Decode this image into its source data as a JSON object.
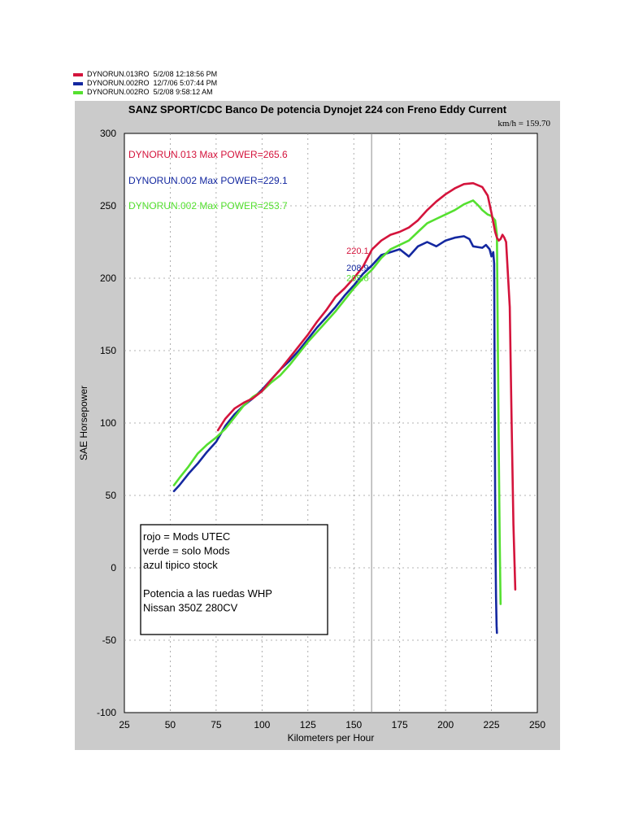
{
  "legend": [
    {
      "name": "DYNORUN.013RO",
      "date": "5/2/08 12:18:56 PM",
      "color": "#d4143c"
    },
    {
      "name": "DYNORUN.002RO",
      "date": "12/7/06 5:07:44 PM",
      "color": "#1428a0"
    },
    {
      "name": "DYNORUN.002RO",
      "date": "5/2/08 9:58:12 AM",
      "color": "#55e030"
    }
  ],
  "readout": "km/h = 159.70",
  "chart_data": {
    "type": "line",
    "title": "SANZ SPORT/CDC  Banco De potencia Dynojet 224 con Freno Eddy Current",
    "xlabel": "Kilometers per Hour",
    "ylabel": "SAE Horsepower",
    "xlim": [
      25,
      250
    ],
    "ylim": [
      -100,
      300
    ],
    "xticks": [
      25,
      50,
      75,
      100,
      125,
      150,
      175,
      200,
      225,
      250
    ],
    "yticks": [
      300,
      250,
      200,
      150,
      100,
      50,
      0,
      -50,
      -100
    ],
    "grid": true,
    "cursor_x": 159.7,
    "annotations": [
      {
        "text": "DYNORUN.013  Max POWER=265.6",
        "color": "#d4143c"
      },
      {
        "text": "DYNORUN.002  Max POWER=229.1",
        "color": "#1428a0"
      },
      {
        "text": "DYNORUN.002  Max POWER=253.7",
        "color": "#55e030"
      }
    ],
    "cursor_values": [
      {
        "text": "220.1",
        "color": "#d4143c",
        "x": 159.7,
        "y": 220.1
      },
      {
        "text": "205.8",
        "color": "#55e030",
        "x": 159.7,
        "y": 205.8
      },
      {
        "text": "208.9",
        "color": "#1428a0",
        "x": 159.7,
        "y": 208.9
      }
    ],
    "notes": [
      "rojo = Mods UTEC",
      "verde = solo Mods",
      "azul tipico stock",
      "",
      "Potencia a las ruedas WHP",
      "Nissan 350Z 280CV"
    ],
    "series": [
      {
        "color": "#d4143c",
        "x": [
          76,
          80,
          85,
          90,
          95,
          100,
          105,
          110,
          115,
          120,
          125,
          130,
          135,
          140,
          145,
          150,
          155,
          160,
          165,
          170,
          175,
          180,
          185,
          190,
          195,
          200,
          205,
          210,
          215,
          220,
          223,
          225,
          227,
          228,
          229,
          230,
          231,
          232,
          233,
          235,
          236,
          237,
          238
        ],
        "y": [
          95,
          103,
          110,
          114,
          117,
          122,
          130,
          137,
          145,
          153,
          161,
          170,
          178,
          187,
          193,
          200,
          208,
          220,
          226,
          230,
          232,
          235,
          240,
          247,
          253,
          258,
          262,
          265,
          265.6,
          263,
          257,
          245,
          232,
          228,
          226,
          227,
          230,
          228,
          225,
          180,
          100,
          30,
          -15
        ]
      },
      {
        "color": "#1428a0",
        "x": [
          52,
          55,
          60,
          65,
          70,
          75,
          80,
          85,
          90,
          95,
          100,
          105,
          110,
          115,
          120,
          125,
          130,
          135,
          140,
          145,
          150,
          155,
          160,
          165,
          170,
          175,
          180,
          185,
          190,
          195,
          200,
          205,
          210,
          213,
          215,
          220,
          222,
          224,
          225,
          226,
          226.5,
          227,
          227.2,
          227.5,
          227.8,
          228
        ],
        "y": [
          53,
          57,
          65,
          72,
          80,
          87,
          98,
          106,
          112,
          117,
          123,
          130,
          137,
          143,
          150,
          158,
          166,
          173,
          180,
          188,
          195,
          203,
          209,
          216,
          218,
          220,
          215,
          222,
          225,
          222,
          226,
          228,
          229,
          227,
          222,
          221,
          223,
          220,
          215,
          218,
          210,
          50,
          15,
          -20,
          -40,
          -45
        ]
      },
      {
        "color": "#55e030",
        "x": [
          52,
          55,
          60,
          65,
          70,
          75,
          80,
          85,
          90,
          95,
          100,
          105,
          110,
          115,
          120,
          125,
          130,
          135,
          140,
          145,
          150,
          155,
          160,
          165,
          170,
          175,
          180,
          185,
          190,
          195,
          200,
          205,
          210,
          215,
          218,
          220,
          223,
          225,
          227,
          228,
          228.5,
          229,
          229.5,
          230
        ],
        "y": [
          57,
          62,
          70,
          79,
          85,
          90,
          96,
          104,
          112,
          118,
          122,
          128,
          133,
          140,
          148,
          156,
          163,
          170,
          177,
          185,
          193,
          200,
          206,
          214,
          220,
          223,
          226,
          232,
          238,
          241,
          244,
          247,
          251,
          253.7,
          250,
          247,
          244,
          243,
          240,
          230,
          150,
          80,
          20,
          -25
        ]
      }
    ]
  }
}
